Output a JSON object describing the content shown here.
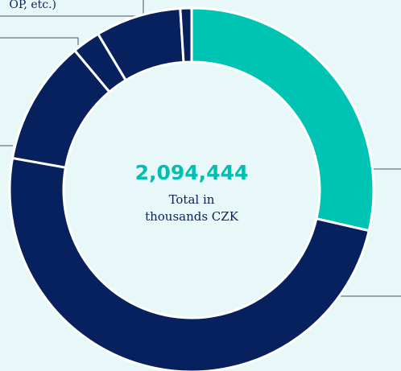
{
  "chart_data": {
    "type": "donut",
    "categories": [
      null,
      null,
      null,
      null,
      "OP, etc.)",
      null
    ],
    "values": [
      28.6,
      49.2,
      11.1,
      2.5,
      7.6,
      1.0
    ],
    "colors": [
      "#00c4b3",
      "#07215f",
      "#07215f",
      "#07215f",
      "#07215f",
      "#07215f"
    ],
    "center_value": "2,094,444",
    "center_label": [
      "Total in",
      "thousands CZK"
    ]
  }
}
